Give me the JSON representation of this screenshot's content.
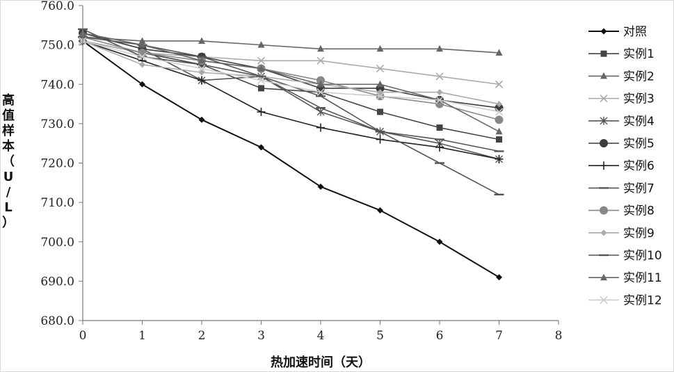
{
  "chart_data": {
    "type": "line",
    "title": "",
    "xlabel": "热加速时间（天）",
    "ylabel_chars": [
      "高",
      "值",
      "样",
      "本",
      "（",
      "U",
      "/",
      "L",
      "）"
    ],
    "xlim": [
      0,
      8
    ],
    "ylim": [
      680,
      760
    ],
    "x_ticks": [
      0,
      1,
      2,
      3,
      4,
      5,
      6,
      7,
      8
    ],
    "y_ticks": [
      680,
      690,
      700,
      710,
      720,
      730,
      740,
      750,
      760
    ],
    "y_tick_labels": [
      "680.0",
      "690.0",
      "700.0",
      "710.0",
      "720.0",
      "730.0",
      "740.0",
      "750.0",
      "760.0"
    ],
    "grid": false,
    "legend_position": "right",
    "x": [
      0,
      1,
      2,
      3,
      4,
      5,
      6,
      7
    ],
    "series": [
      {
        "name": "对照",
        "color": "#111111",
        "marker": "diamond",
        "values": [
          751,
          740,
          731,
          724,
          714,
          708,
          700,
          691
        ]
      },
      {
        "name": "实例1",
        "color": "#444444",
        "marker": "square",
        "values": [
          751,
          748,
          745,
          739,
          738,
          733,
          729,
          726
        ]
      },
      {
        "name": "实例2",
        "color": "#666666",
        "marker": "triangle",
        "values": [
          752,
          751,
          751,
          750,
          749,
          749,
          749,
          748
        ]
      },
      {
        "name": "实例3",
        "color": "#aaaaaa",
        "marker": "x",
        "values": [
          751,
          748,
          747,
          746,
          746,
          744,
          742,
          740
        ]
      },
      {
        "name": "实例4",
        "color": "#555555",
        "marker": "asterisk",
        "values": [
          753,
          749,
          741,
          742,
          733,
          728,
          725,
          721
        ]
      },
      {
        "name": "实例5",
        "color": "#3d3d3d",
        "marker": "circle",
        "values": [
          753,
          749,
          747,
          744,
          739,
          739,
          736,
          734
        ]
      },
      {
        "name": "实例6",
        "color": "#222222",
        "marker": "plus",
        "values": [
          751,
          746,
          741,
          733,
          729,
          726,
          724,
          721
        ]
      },
      {
        "name": "实例7",
        "color": "#555555",
        "marker": "dash",
        "values": [
          754,
          747,
          745,
          742,
          737,
          728,
          726,
          723
        ]
      },
      {
        "name": "实例8",
        "color": "#888888",
        "marker": "circle",
        "values": [
          752,
          748,
          746,
          744,
          741,
          737,
          735,
          731
        ]
      },
      {
        "name": "实例9",
        "color": "#aaaaaa",
        "marker": "diamond",
        "values": [
          751,
          745,
          743,
          742,
          740,
          738,
          738,
          735
        ]
      },
      {
        "name": "实例10",
        "color": "#555555",
        "marker": "dash",
        "values": [
          752,
          750,
          747,
          742,
          734,
          728,
          720,
          712
        ]
      },
      {
        "name": "实例11",
        "color": "#666666",
        "marker": "triangle",
        "values": [
          753,
          750,
          746,
          744,
          740,
          740,
          736,
          728
        ]
      },
      {
        "name": "实例12",
        "color": "#cccccc",
        "marker": "x",
        "values": [
          751,
          747,
          744,
          741,
          738,
          737,
          736,
          733
        ]
      }
    ]
  }
}
